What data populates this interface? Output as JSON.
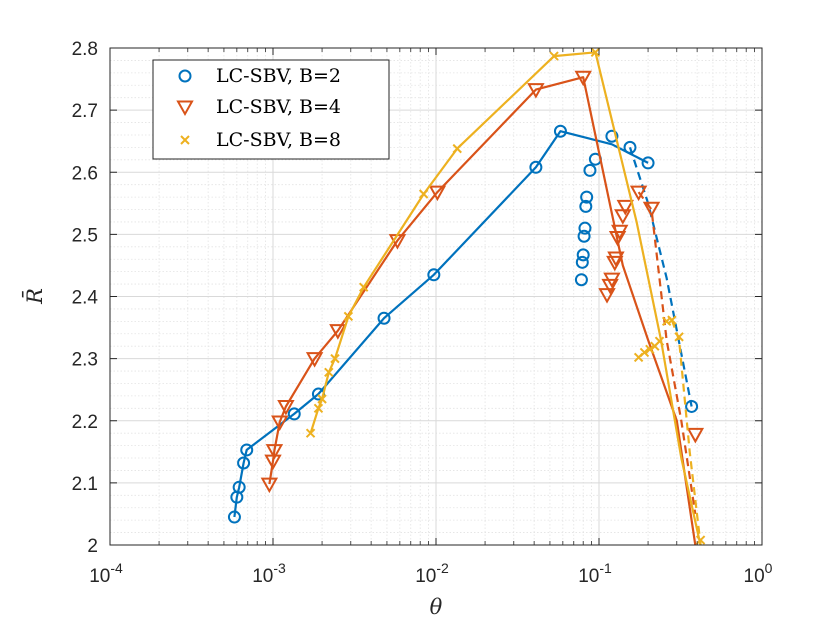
{
  "chart_data": {
    "type": "line",
    "xscale": "log",
    "xlim": [
      0.0001,
      1
    ],
    "ylim": [
      2.0,
      2.8
    ],
    "xlabel": "θ",
    "ylabel": "R̄",
    "xticks": [
      {
        "value": 0.0001,
        "base": "10",
        "exp": "-4"
      },
      {
        "value": 0.001,
        "base": "10",
        "exp": "-3"
      },
      {
        "value": 0.01,
        "base": "10",
        "exp": "-2"
      },
      {
        "value": 0.1,
        "base": "10",
        "exp": "-1"
      },
      {
        "value": 1,
        "base": "10",
        "exp": "0"
      }
    ],
    "yticks": [
      {
        "value": 2.0,
        "label": "2"
      },
      {
        "value": 2.1,
        "label": "2.1"
      },
      {
        "value": 2.2,
        "label": "2.2"
      },
      {
        "value": 2.3,
        "label": "2.3"
      },
      {
        "value": 2.4,
        "label": "2.4"
      },
      {
        "value": 2.5,
        "label": "2.5"
      },
      {
        "value": 2.6,
        "label": "2.6"
      },
      {
        "value": 2.7,
        "label": "2.7"
      },
      {
        "value": 2.8,
        "label": "2.8"
      }
    ],
    "grid": true,
    "minor_grid": true,
    "legend_position": "top-left",
    "series": [
      {
        "name": "LC-SBV, B=2",
        "color": "#0072BD",
        "marker": "circle",
        "points": [
          [
            0.00058,
            2.045
          ],
          [
            0.0006,
            2.077
          ],
          [
            0.00062,
            2.093
          ],
          [
            0.00066,
            2.132
          ],
          [
            0.00069,
            2.153
          ],
          [
            0.00135,
            2.211
          ],
          [
            0.0019,
            2.243
          ],
          [
            0.0048,
            2.365
          ],
          [
            0.0097,
            2.435
          ],
          [
            0.041,
            2.608
          ],
          [
            0.058,
            2.666
          ],
          [
            0.12,
            2.658
          ],
          [
            0.155,
            2.64
          ],
          [
            0.2,
            2.615
          ],
          [
            0.078,
            2.427
          ],
          [
            0.079,
            2.455
          ],
          [
            0.08,
            2.467
          ],
          [
            0.081,
            2.497
          ],
          [
            0.082,
            2.51
          ],
          [
            0.083,
            2.545
          ],
          [
            0.084,
            2.56
          ],
          [
            0.088,
            2.603
          ],
          [
            0.095,
            2.621
          ],
          [
            0.37,
            2.223
          ]
        ],
        "solid": [
          [
            0.00058,
            2.045
          ],
          [
            0.0006,
            2.077
          ],
          [
            0.00062,
            2.093
          ],
          [
            0.00066,
            2.132
          ],
          [
            0.00069,
            2.153
          ],
          [
            0.00135,
            2.211
          ],
          [
            0.0019,
            2.243
          ],
          [
            0.0048,
            2.365
          ],
          [
            0.0097,
            2.435
          ],
          [
            0.041,
            2.608
          ],
          [
            0.058,
            2.666
          ],
          [
            0.12,
            2.645
          ],
          [
            0.155,
            2.63
          ],
          [
            0.2,
            2.615
          ]
        ],
        "dashed": [
          [
            0.155,
            2.64
          ],
          [
            0.2,
            2.55
          ],
          [
            0.26,
            2.43
          ],
          [
            0.37,
            2.223
          ]
        ]
      },
      {
        "name": "LC-SBV, B=4",
        "color": "#D95319",
        "marker": "triangle-down",
        "points": [
          [
            0.00095,
            2.098
          ],
          [
            0.001,
            2.135
          ],
          [
            0.00102,
            2.152
          ],
          [
            0.0011,
            2.198
          ],
          [
            0.0012,
            2.223
          ],
          [
            0.0018,
            2.3
          ],
          [
            0.0025,
            2.345
          ],
          [
            0.0058,
            2.49
          ],
          [
            0.0102,
            2.568
          ],
          [
            0.041,
            2.733
          ],
          [
            0.08,
            2.753
          ],
          [
            0.112,
            2.403
          ],
          [
            0.117,
            2.418
          ],
          [
            0.12,
            2.428
          ],
          [
            0.125,
            2.455
          ],
          [
            0.127,
            2.462
          ],
          [
            0.13,
            2.495
          ],
          [
            0.134,
            2.505
          ],
          [
            0.14,
            2.53
          ],
          [
            0.145,
            2.545
          ],
          [
            0.175,
            2.568
          ],
          [
            0.21,
            2.542
          ],
          [
            0.39,
            2.178
          ]
        ],
        "solid": [
          [
            0.00095,
            2.098
          ],
          [
            0.001,
            2.135
          ],
          [
            0.00102,
            2.152
          ],
          [
            0.0011,
            2.198
          ],
          [
            0.0012,
            2.223
          ],
          [
            0.0018,
            2.3
          ],
          [
            0.0025,
            2.345
          ],
          [
            0.0058,
            2.49
          ],
          [
            0.0102,
            2.568
          ],
          [
            0.041,
            2.733
          ],
          [
            0.08,
            2.753
          ],
          [
            0.14,
            2.45
          ],
          [
            0.2,
            2.33
          ],
          [
            0.3,
            2.2
          ],
          [
            0.39,
            2.0
          ]
        ],
        "dashed": [
          [
            0.175,
            2.568
          ],
          [
            0.21,
            2.54
          ],
          [
            0.26,
            2.33
          ],
          [
            0.32,
            2.2
          ],
          [
            0.39,
            2.05
          ]
        ]
      },
      {
        "name": "LC-SBV, B=8",
        "color": "#EDB120",
        "marker": "x",
        "points": [
          [
            0.0017,
            2.18
          ],
          [
            0.0019,
            2.22
          ],
          [
            0.002,
            2.235
          ],
          [
            0.0022,
            2.278
          ],
          [
            0.0024,
            2.3
          ],
          [
            0.0029,
            2.368
          ],
          [
            0.0036,
            2.415
          ],
          [
            0.0084,
            2.565
          ],
          [
            0.0135,
            2.638
          ],
          [
            0.053,
            2.787
          ],
          [
            0.095,
            2.793
          ],
          [
            0.175,
            2.302
          ],
          [
            0.19,
            2.31
          ],
          [
            0.205,
            2.315
          ],
          [
            0.22,
            2.32
          ],
          [
            0.235,
            2.328
          ],
          [
            0.26,
            2.36
          ],
          [
            0.28,
            2.362
          ],
          [
            0.31,
            2.335
          ],
          [
            0.42,
            2.008
          ]
        ],
        "solid": [
          [
            0.0017,
            2.18
          ],
          [
            0.0019,
            2.22
          ],
          [
            0.002,
            2.235
          ],
          [
            0.0022,
            2.278
          ],
          [
            0.0024,
            2.3
          ],
          [
            0.0029,
            2.368
          ],
          [
            0.0036,
            2.415
          ],
          [
            0.0084,
            2.565
          ],
          [
            0.0135,
            2.638
          ],
          [
            0.053,
            2.787
          ],
          [
            0.095,
            2.793
          ],
          [
            0.17,
            2.52
          ],
          [
            0.24,
            2.33
          ],
          [
            0.32,
            2.14
          ],
          [
            0.42,
            1.999
          ]
        ],
        "dashed": [
          [
            0.28,
            2.362
          ],
          [
            0.31,
            2.33
          ],
          [
            0.36,
            2.15
          ],
          [
            0.42,
            2.0
          ]
        ]
      }
    ]
  }
}
